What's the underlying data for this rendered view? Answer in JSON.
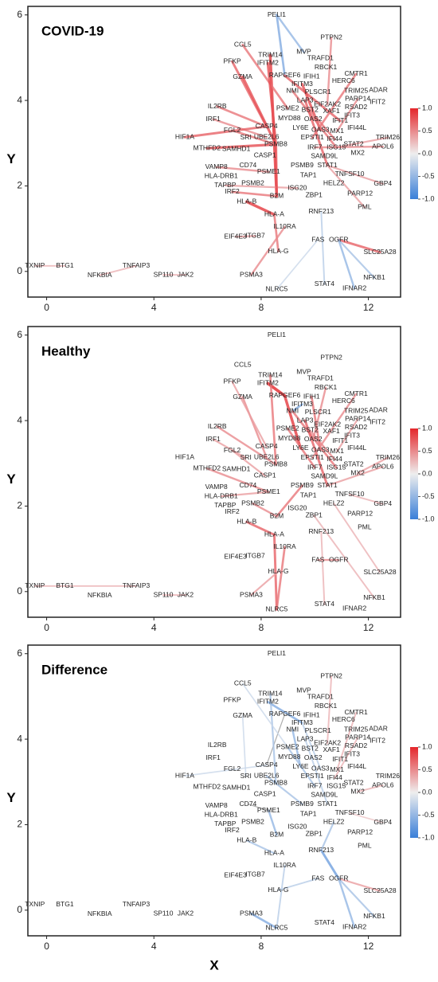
{
  "nodes": {
    "labels": [
      "PELI1",
      "PTPN2",
      "CCL5",
      "MVP",
      "TRIM14",
      "TRAFD1",
      "IFITM2",
      "RBCK1",
      "PFKP",
      "CMTR1",
      "RAPGEF6",
      "IFIH1",
      "GZMA",
      "IFITM3",
      "HERC6",
      "TRIM25",
      "ADAR",
      "NMI",
      "PLSCR1",
      "PARP14",
      "LAP3",
      "IL2RB",
      "RSAD2",
      "IFIT2",
      "EIF2AK2",
      "PSME2",
      "BST2",
      "XAF1",
      "IFIT3",
      "IRF1",
      "MYD88",
      "OAS2",
      "IFIT1",
      "CASP4",
      "LY6E",
      "FGL2",
      "OAS3",
      "MX1",
      "IFI44L",
      "HIF1A",
      "UBE2L6",
      "SRI",
      "EPSTI1",
      "TRIM26",
      "IFI44",
      "PSMB8",
      "MTHFD2",
      "SAMHD1",
      "IRF7",
      "ISG15",
      "STAT2",
      "APOL6",
      "SAMD9L",
      "CASP1",
      "MX2",
      "VAMP8",
      "CD74",
      "PSMB9",
      "STAT1",
      "PSME1",
      "HLA-DRB1",
      "TAP1",
      "TNFSF10",
      "TAPBP",
      "PSMB2",
      "GBP4",
      "HELZ2",
      "ISG20",
      "IRF2",
      "PARP12",
      "ZBP1",
      "B2M",
      "HLA-B",
      "PML",
      "RNF213",
      "HLA-A",
      "IL10RA",
      "EIF4E3",
      "ITGB7",
      "FAS",
      "OGFR",
      "SLC25A28",
      "HLA-G",
      "PSMA3",
      "NLRC5",
      "STAT4",
      "IFNAR2",
      "NFKB1",
      "TXNIP",
      "BTG1",
      "NFKBIA",
      "TNFAIP3",
      "SP110",
      "JAK2"
    ],
    "x": [
      8.58,
      10.62,
      7.31,
      9.59,
      8.34,
      10.21,
      8.25,
      10.41,
      6.92,
      11.54,
      8.88,
      9.88,
      7.31,
      9.53,
      11.07,
      11.54,
      12.37,
      9.17,
      10.12,
      11.6,
      9.64,
      6.36,
      11.54,
      12.34,
      10.47,
      8.99,
      9.82,
      10.62,
      11.39,
      6.21,
      9.05,
      9.94,
      10.95,
      8.2,
      9.47,
      6.92,
      10.21,
      10.83,
      11.57,
      5.15,
      8.2,
      7.43,
      9.91,
      12.72,
      10.74,
      8.55,
      5.98,
      7.07,
      10.0,
      10.8,
      11.45,
      12.54,
      10.36,
      8.14,
      11.6,
      6.33,
      7.51,
      9.53,
      10.47,
      8.28,
      6.51,
      9.76,
      11.3,
      6.66,
      7.69,
      12.54,
      10.71,
      9.35,
      6.92,
      11.69,
      9.97,
      8.58,
      7.46,
      11.86,
      10.24,
      8.49,
      8.88,
      7.04,
      7.78,
      10.12,
      10.89,
      12.43,
      8.64,
      7.63,
      8.58,
      10.36,
      11.48,
      12.22,
      -0.44,
      0.68,
      1.98,
      3.34,
      4.35,
      5.18
    ],
    "y": [
      6.0,
      5.47,
      5.3,
      5.13,
      5.06,
      4.98,
      4.87,
      4.77,
      4.91,
      4.62,
      4.58,
      4.56,
      4.55,
      4.38,
      4.45,
      4.22,
      4.24,
      4.22,
      4.19,
      4.03,
      4.0,
      3.86,
      3.84,
      3.96,
      3.9,
      3.81,
      3.77,
      3.75,
      3.64,
      3.56,
      3.58,
      3.56,
      3.52,
      3.39,
      3.35,
      3.3,
      3.31,
      3.28,
      3.35,
      3.14,
      3.14,
      3.13,
      3.13,
      3.13,
      3.09,
      2.97,
      2.88,
      2.86,
      2.9,
      2.9,
      2.97,
      2.92,
      2.69,
      2.71,
      2.77,
      2.44,
      2.48,
      2.48,
      2.48,
      2.33,
      2.23,
      2.25,
      2.27,
      2.01,
      2.06,
      2.05,
      2.06,
      1.95,
      1.86,
      1.82,
      1.78,
      1.76,
      1.63,
      1.5,
      1.4,
      1.33,
      1.04,
      0.81,
      0.83,
      0.74,
      0.74,
      0.45,
      0.47,
      -0.08,
      -0.42,
      -0.3,
      -0.4,
      -0.15,
      0.13,
      0.13,
      -0.09,
      0.13,
      -0.08,
      -0.08
    ]
  },
  "chart_data": [
    {
      "type": "network",
      "title": "COVID-19",
      "y_label": "Y",
      "xlim": [
        -0.7,
        13.2
      ],
      "xticks": [
        0,
        4,
        8,
        12
      ],
      "ylim": [
        -0.6,
        6.2
      ],
      "yticks": [
        0,
        2,
        4,
        6
      ],
      "colorbar": {
        "lim": [
          -1,
          1
        ],
        "colors": [
          "#3a7fd8",
          "#eeeeee",
          "#e4262b"
        ],
        "ticks": [
          {
            "value": 1,
            "label": "1.0"
          },
          0.5,
          {
            "value": 0,
            "label": "0.0"
          },
          -0.5,
          {
            "value": -1,
            "label": "-1.0"
          }
        ]
      },
      "edges": [
        [
          0,
          10,
          -0.6
        ],
        [
          0,
          3,
          -0.5
        ],
        [
          4,
          71,
          0.9
        ],
        [
          2,
          25,
          0.6
        ],
        [
          8,
          33,
          0.7
        ],
        [
          12,
          45,
          0.8
        ],
        [
          21,
          33,
          0.6
        ],
        [
          29,
          40,
          0.5
        ],
        [
          39,
          33,
          0.7
        ],
        [
          46,
          45,
          0.8
        ],
        [
          35,
          45,
          0.6
        ],
        [
          55,
          59,
          0.5
        ],
        [
          63,
          67,
          0.4
        ],
        [
          68,
          71,
          0.6
        ],
        [
          72,
          75,
          0.9
        ],
        [
          71,
          45,
          0.8
        ],
        [
          10,
          32,
          0.7
        ],
        [
          13,
          36,
          0.8
        ],
        [
          17,
          49,
          0.6
        ],
        [
          20,
          58,
          0.7
        ],
        [
          26,
          44,
          0.6
        ],
        [
          1,
          24,
          0.5
        ],
        [
          9,
          42,
          0.6
        ],
        [
          19,
          37,
          0.5
        ],
        [
          43,
          49,
          0.4
        ],
        [
          51,
          48,
          0.5
        ],
        [
          65,
          58,
          0.4
        ],
        [
          81,
          80,
          0.7
        ],
        [
          80,
          86,
          -0.5
        ],
        [
          80,
          87,
          -0.4
        ],
        [
          85,
          74,
          -0.3
        ],
        [
          82,
          75,
          0.6
        ],
        [
          83,
          76,
          0.5
        ],
        [
          84,
          79,
          -0.2
        ],
        [
          77,
          78,
          0.4
        ],
        [
          88,
          89,
          0.3
        ],
        [
          90,
          91,
          0.3
        ],
        [
          92,
          93,
          0.3
        ],
        [
          6,
          45,
          0.8
        ],
        [
          73,
          58,
          0.4
        ]
      ]
    },
    {
      "type": "network",
      "title": "Healthy",
      "y_label": "Y",
      "xlim": [
        -0.7,
        13.2
      ],
      "xticks": [
        0,
        4,
        8,
        12
      ],
      "ylim": [
        -0.6,
        6.2
      ],
      "yticks": [
        0,
        2,
        4,
        6
      ],
      "colorbar": {
        "lim": [
          -1,
          1
        ],
        "colors": [
          "#3a7fd8",
          "#eeeeee",
          "#e4262b"
        ],
        "ticks": [
          {
            "value": 1,
            "label": "1.0"
          },
          0.5,
          {
            "value": 0,
            "label": "0.0"
          },
          -0.5,
          {
            "value": -1,
            "label": "-1.0"
          }
        ]
      },
      "edges": [
        [
          6,
          10,
          1.0
        ],
        [
          10,
          34,
          0.9
        ],
        [
          13,
          17,
          -0.6
        ],
        [
          4,
          45,
          0.6
        ],
        [
          12,
          40,
          0.5
        ],
        [
          8,
          33,
          0.4
        ],
        [
          21,
          45,
          0.5
        ],
        [
          29,
          41,
          0.4
        ],
        [
          46,
          59,
          0.5
        ],
        [
          35,
          53,
          0.4
        ],
        [
          25,
          48,
          0.6
        ],
        [
          17,
          49,
          0.6
        ],
        [
          20,
          58,
          0.7
        ],
        [
          26,
          44,
          0.5
        ],
        [
          11,
          36,
          0.6
        ],
        [
          7,
          31,
          0.5
        ],
        [
          9,
          42,
          0.5
        ],
        [
          19,
          37,
          0.4
        ],
        [
          43,
          54,
          0.4
        ],
        [
          51,
          58,
          0.4
        ],
        [
          72,
          75,
          0.7
        ],
        [
          71,
          57,
          0.6
        ],
        [
          75,
          84,
          0.7
        ],
        [
          84,
          76,
          0.6
        ],
        [
          83,
          82,
          0.4
        ],
        [
          80,
          79,
          0.5
        ],
        [
          81,
          66,
          0.3
        ],
        [
          85,
          74,
          0.3
        ],
        [
          87,
          70,
          0.3
        ],
        [
          88,
          91,
          0.3
        ],
        [
          92,
          93,
          0.3
        ],
        [
          64,
          71,
          0.5
        ],
        [
          60,
          59,
          0.4
        ],
        [
          65,
          62,
          0.3
        ]
      ]
    },
    {
      "type": "network",
      "title": "Difference",
      "y_label": "Y",
      "x_label": "X",
      "xlim": [
        -0.7,
        13.2
      ],
      "xticks": [
        0,
        4,
        8,
        12
      ],
      "ylim": [
        -0.6,
        6.2
      ],
      "yticks": [
        0,
        2,
        4,
        6
      ],
      "colorbar": {
        "lim": [
          -1,
          1
        ],
        "colors": [
          "#3a7fd8",
          "#eeeeee",
          "#e4262b"
        ],
        "ticks": [
          {
            "value": 1,
            "label": "1.0"
          },
          0.5,
          {
            "value": 0,
            "label": "0.0"
          },
          -0.5,
          {
            "value": -1,
            "label": "-1.0"
          }
        ]
      },
      "edges": [
        [
          10,
          33,
          0.0
        ],
        [
          56,
          59,
          0.0
        ],
        [
          6,
          13,
          -0.6
        ],
        [
          4,
          45,
          -0.4
        ],
        [
          17,
          34,
          -0.5
        ],
        [
          13,
          36,
          -0.3
        ],
        [
          25,
          48,
          -0.4
        ],
        [
          20,
          58,
          -0.3
        ],
        [
          40,
          57,
          -0.4
        ],
        [
          59,
          71,
          -0.5
        ],
        [
          72,
          75,
          -0.4
        ],
        [
          74,
          80,
          -0.7
        ],
        [
          80,
          81,
          0.4
        ],
        [
          80,
          86,
          -0.5
        ],
        [
          80,
          87,
          -0.4
        ],
        [
          83,
          84,
          -0.6
        ],
        [
          84,
          76,
          -0.3
        ],
        [
          82,
          79,
          -0.3
        ],
        [
          1,
          24,
          0.3
        ],
        [
          9,
          37,
          0.3
        ],
        [
          19,
          44,
          0.3
        ],
        [
          51,
          54,
          0.3
        ],
        [
          65,
          62,
          0.2
        ],
        [
          66,
          74,
          -0.4
        ],
        [
          2,
          25,
          -0.2
        ],
        [
          12,
          41,
          -0.2
        ],
        [
          39,
          33,
          -0.2
        ]
      ]
    }
  ]
}
